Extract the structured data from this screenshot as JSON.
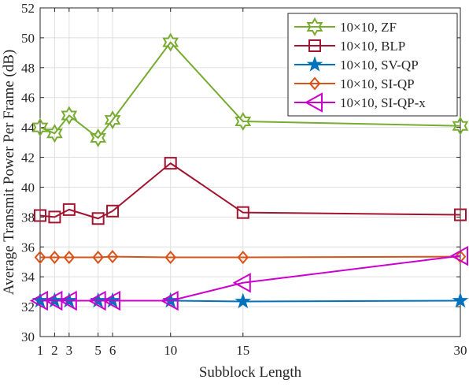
{
  "chart_data": {
    "type": "line",
    "title": "",
    "xlabel": "Subblock Length",
    "ylabel": "Average Transmit Power Per Frame (dB)",
    "xlim": [
      1,
      30
    ],
    "ylim": [
      30,
      52
    ],
    "xticks": [
      1,
      2,
      3,
      5,
      6,
      10,
      15,
      30
    ],
    "yticks": [
      30,
      32,
      34,
      36,
      38,
      40,
      42,
      44,
      46,
      48,
      50,
      52
    ],
    "grid": true,
    "legend_position": "top-right",
    "x": [
      1,
      2,
      3,
      5,
      6,
      10,
      15,
      30
    ],
    "series": [
      {
        "name": "10×10, ZF",
        "color": "#77AC30",
        "marker": "hexagram",
        "values": [
          44.0,
          43.6,
          44.8,
          43.3,
          44.5,
          49.7,
          44.4,
          44.1
        ]
      },
      {
        "name": "10×10, BLP",
        "color": "#A2142F",
        "marker": "square",
        "values": [
          38.1,
          38.0,
          38.5,
          37.9,
          38.4,
          41.6,
          38.3,
          38.15
        ]
      },
      {
        "name": "10×10, SV-QP",
        "color": "#0072BD",
        "marker": "pentagram",
        "values": [
          32.4,
          32.4,
          32.4,
          32.4,
          32.4,
          32.4,
          32.35,
          32.4
        ]
      },
      {
        "name": "10×10, SI-QP",
        "color": "#D95319",
        "marker": "diamond",
        "values": [
          35.3,
          35.3,
          35.3,
          35.3,
          35.35,
          35.3,
          35.3,
          35.35
        ]
      },
      {
        "name": "10×10, SI-QP-x",
        "color": "#CC00CC",
        "marker": "triangle-left",
        "values": [
          32.4,
          32.4,
          32.4,
          32.4,
          32.4,
          32.4,
          33.6,
          35.4
        ]
      }
    ]
  }
}
